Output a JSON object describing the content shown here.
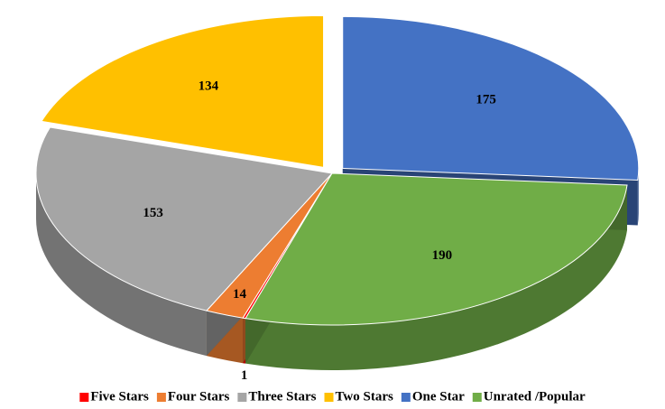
{
  "chart_data": {
    "type": "pie",
    "categories": [
      "Five Stars",
      "Four Stars",
      "Three Stars",
      "Two Stars",
      "One Star",
      "Unrated /Popular"
    ],
    "values": [
      1,
      14,
      153,
      134,
      175,
      190
    ],
    "colors": [
      "#ff0000",
      "#ed7d31",
      "#a5a5a5",
      "#ffc000",
      "#4472c4",
      "#70ad47"
    ],
    "legend": "bottom"
  }
}
